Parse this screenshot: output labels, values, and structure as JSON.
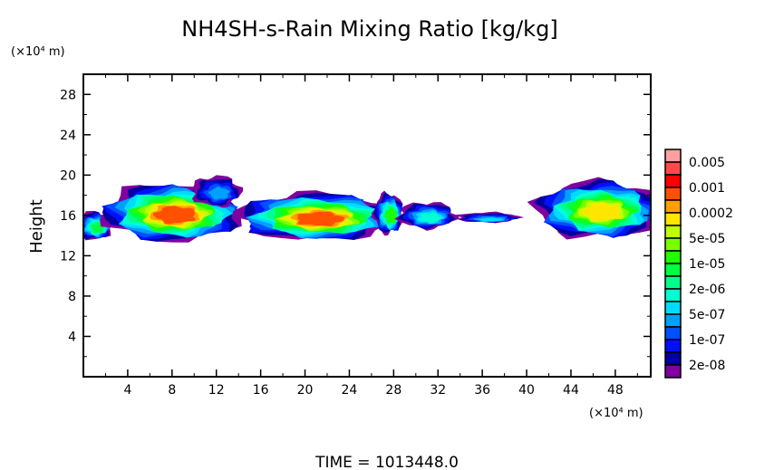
{
  "chart_data": {
    "type": "heatmap",
    "title": "NH4SH-s-Rain Mixing Ratio [kg/kg]",
    "xlabel": "",
    "ylabel": "Height",
    "x_unit_label": "(×10⁴ m)",
    "y_unit_label": "(×10⁴ m)",
    "xlim": [
      0,
      51.2
    ],
    "ylim": [
      0,
      30
    ],
    "x_ticks": [
      "4",
      "8",
      "12",
      "16",
      "20",
      "24",
      "28",
      "32",
      "36",
      "40",
      "44",
      "48"
    ],
    "y_ticks": [
      "4",
      "8",
      "12",
      "16",
      "20",
      "24",
      "28"
    ],
    "footer": "TIME = 1013448.0",
    "colorbar": {
      "colors": [
        "#ffa0a0",
        "#ff4a4a",
        "#ff0000",
        "#ff5000",
        "#ffa000",
        "#ffe600",
        "#c0ff00",
        "#78ff00",
        "#1eff00",
        "#00ff40",
        "#00ff8c",
        "#00ffd2",
        "#00dcff",
        "#00a0ff",
        "#0050ff",
        "#0010ff",
        "#0000a0",
        "#8000a0"
      ],
      "labels": [
        "0.005",
        "0.001",
        "0.0002",
        "5e-05",
        "1e-05",
        "2e-06",
        "5e-07",
        "1e-07",
        "2e-08"
      ]
    },
    "cloud_regions": [
      {
        "x": 1.0,
        "y": 15.0,
        "rx": 1.6,
        "ry": 1.4,
        "peak_level": 9
      },
      {
        "x": 8.0,
        "y": 16.3,
        "rx": 6.2,
        "ry": 2.8,
        "peak_level": 3
      },
      {
        "x": 12.0,
        "y": 18.4,
        "rx": 2.2,
        "ry": 1.5,
        "peak_level": 13
      },
      {
        "x": 21.0,
        "y": 15.9,
        "rx": 7.0,
        "ry": 2.3,
        "peak_level": 3
      },
      {
        "x": 27.5,
        "y": 16.2,
        "rx": 1.3,
        "ry": 2.0,
        "peak_level": 8
      },
      {
        "x": 31.0,
        "y": 16.0,
        "rx": 2.6,
        "ry": 1.3,
        "peak_level": 11
      },
      {
        "x": 36.5,
        "y": 15.8,
        "rx": 2.8,
        "ry": 0.5,
        "peak_level": 12
      },
      {
        "x": 46.5,
        "y": 16.6,
        "rx": 5.6,
        "ry": 2.8,
        "peak_level": 5
      }
    ]
  }
}
